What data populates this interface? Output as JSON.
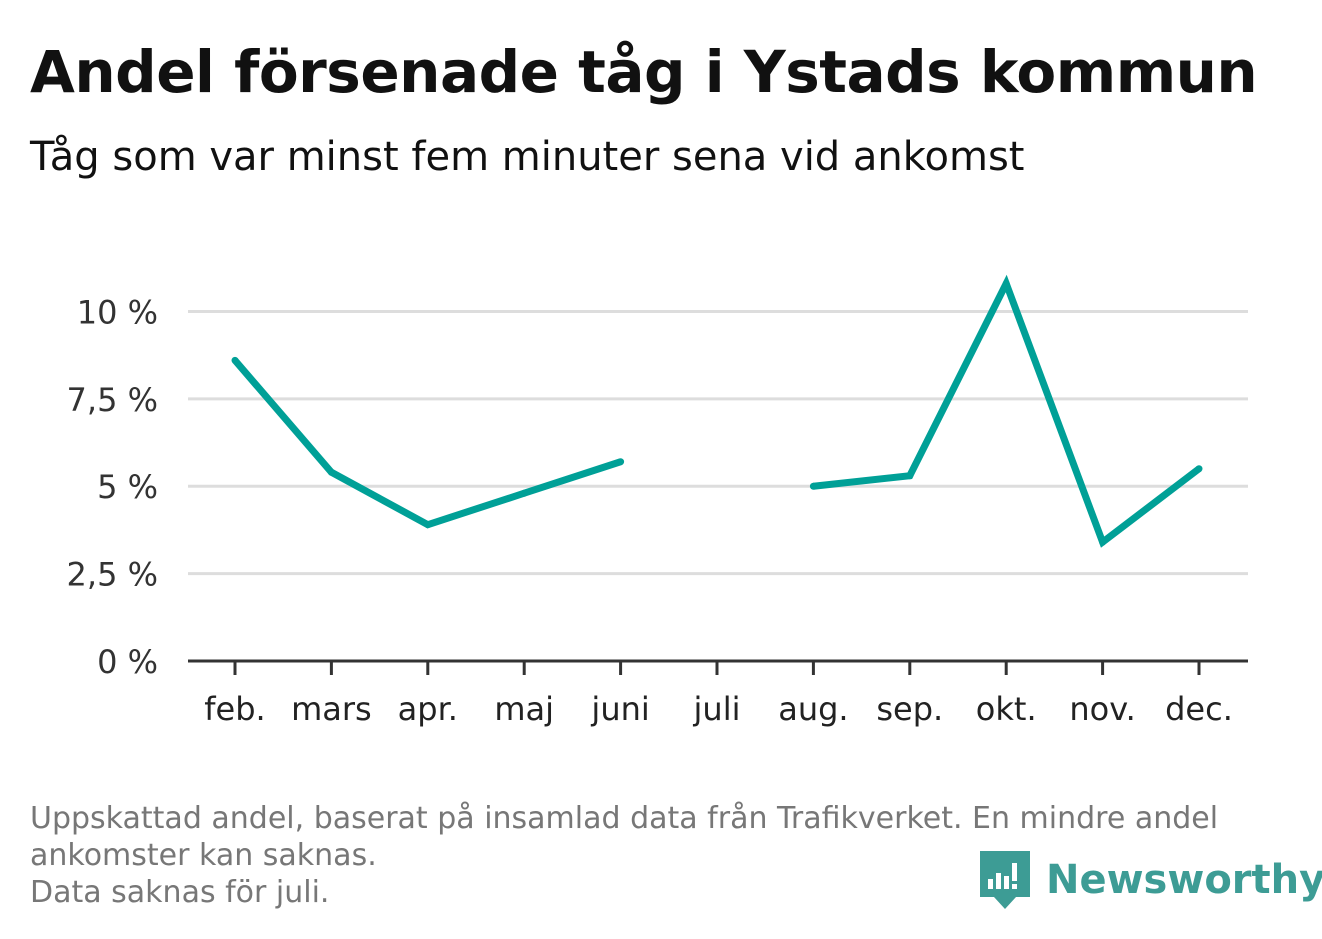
{
  "header": {
    "title": "Andel försenade tåg i Ystads kommun",
    "subtitle": "Tåg som var minst fem minuter sena vid ankomst"
  },
  "footnote": {
    "line1": "Uppskattad andel, baserat på insamlad data från Trafikverket. En mindre andel",
    "line2": "ankomster kan saknas.",
    "line3": "Data saknas för juli."
  },
  "brand": {
    "name": "Newsworthy",
    "icon": "newsworthy-logo-icon",
    "color": "#3d9c95"
  },
  "chart_data": {
    "type": "line",
    "categories": [
      "feb.",
      "mars",
      "apr.",
      "maj",
      "juni",
      "juli",
      "aug.",
      "sep.",
      "okt.",
      "nov.",
      "dec."
    ],
    "series": [
      {
        "name": "",
        "values": [
          8.6,
          5.4,
          3.9,
          4.8,
          5.7,
          null,
          5.0,
          5.3,
          10.8,
          3.4,
          5.5
        ]
      }
    ],
    "ylim": [
      0,
      10.9
    ],
    "yticks": [
      0,
      2.5,
      5,
      7.5,
      10
    ],
    "ytick_labels": [
      "0 %",
      "2,5 %",
      "5 %",
      "7,5 %",
      "10 %"
    ],
    "xlabel": "",
    "ylabel": "",
    "grid": true,
    "line_color": "#00a097",
    "grid_color": "#dddddd",
    "axis_color": "#333333"
  }
}
